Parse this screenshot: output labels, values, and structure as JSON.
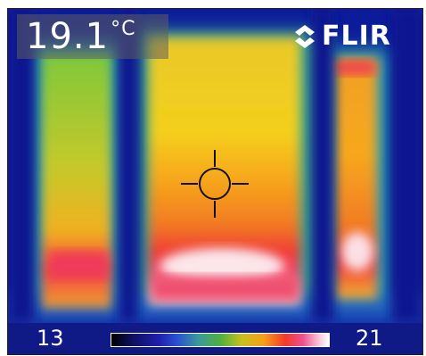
{
  "camera": {
    "spot_temperature": "19.1",
    "temperature_unit": "°C",
    "brand": "FLIR"
  },
  "scale": {
    "min": "13",
    "max": "21"
  },
  "colors": {
    "cold": "#0c1b9a",
    "cool": "#2aa0b0",
    "mild": "#5cbf3c",
    "warm": "#f4d21e",
    "hot": "#f23a2a",
    "hottest": "#fbe6ea"
  },
  "icons": {
    "crosshair": "crosshair-icon",
    "logo": "flir-logo-icon"
  }
}
